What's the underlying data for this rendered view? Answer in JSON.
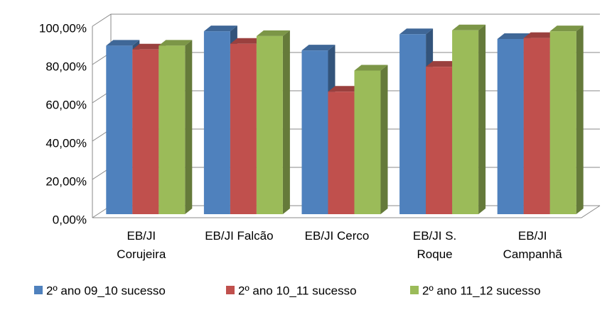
{
  "chart_data": {
    "type": "bar3d",
    "categories": [
      "EB/JI Corujeira",
      "EB/JI Falcão",
      "EB/JI Cerco",
      "EB/JI S. Roque",
      "EB/JI Campanhã"
    ],
    "series": [
      {
        "name": "2º ano 09_10 sucesso",
        "color": "#4f81bd",
        "values": [
          88,
          95.5,
          85.5,
          94,
          91.5
        ]
      },
      {
        "name": "2º ano 10_11 sucesso",
        "color": "#c0504d",
        "values": [
          86,
          89,
          64,
          77,
          92
        ]
      },
      {
        "name": "2º ano 11_12 sucesso",
        "color": "#9bbb59",
        "values": [
          88,
          93,
          75,
          96,
          95.5
        ]
      }
    ],
    "ylim": [
      0,
      100
    ],
    "yticks": [
      {
        "value": 0,
        "label": "0,00%"
      },
      {
        "value": 20,
        "label": "20,00%"
      },
      {
        "value": 40,
        "label": "40,00%"
      },
      {
        "value": 60,
        "label": "60,00%"
      },
      {
        "value": 80,
        "label": "80,00%"
      },
      {
        "value": 100,
        "label": "100,00%"
      }
    ],
    "grid": true,
    "legend": "bottom"
  }
}
